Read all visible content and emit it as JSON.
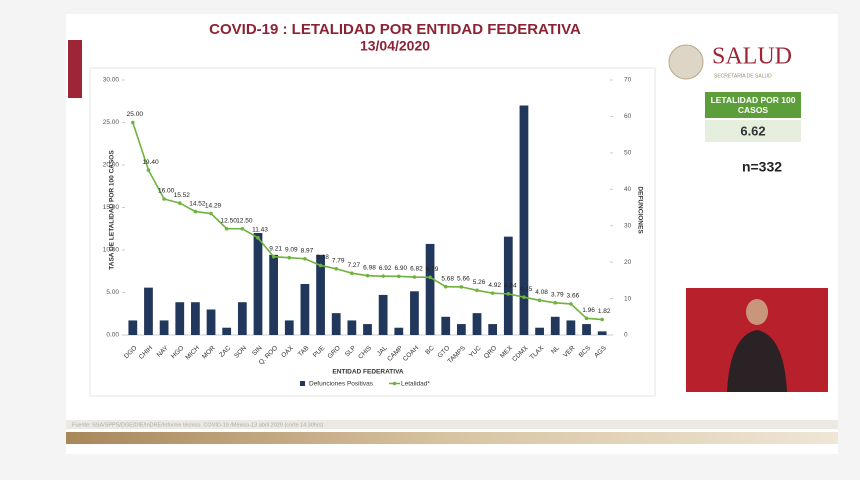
{
  "chart_data": {
    "type": "bar",
    "title": "COVID-19 : LETALIDAD POR ENTIDAD FEDERATIVA",
    "subtitle": "13/04/2020",
    "x_label": "ENTIDAD FEDERATIVA",
    "y_label": "TASA DE LETALIDAD POR 100 CASOS",
    "y2_label": "DEFUNCIONES",
    "categories": [
      "DGO",
      "CHIH",
      "NAY",
      "HGO",
      "MICH",
      "MOR",
      "ZAC",
      "SON",
      "SIN",
      "Q. ROO",
      "OAX",
      "TAB",
      "PUE",
      "GRO",
      "SLP",
      "CHIS",
      "JAL",
      "CAMP",
      "COAH",
      "BC",
      "GTO",
      "TAMPS",
      "YUC",
      "QRO",
      "MEX",
      "CDMX",
      "TLAX",
      "NL",
      "VER",
      "BCS",
      "AGS"
    ],
    "series": [
      {
        "name": "Defunciones Positivas",
        "type": "bar",
        "axis": "y2",
        "color": "#22375c",
        "values": [
          4,
          13,
          4,
          9,
          9,
          7,
          2,
          9,
          28,
          22,
          4,
          14,
          22,
          6,
          4,
          3,
          11,
          2,
          12,
          25,
          5,
          3,
          6,
          3,
          27,
          63,
          2,
          5,
          4,
          3,
          1
        ]
      },
      {
        "name": "Letalidad*",
        "type": "line",
        "axis": "y",
        "color": "#6fb33c",
        "values": [
          25,
          19.4,
          16,
          15.52,
          14.52,
          14.29,
          12.5,
          12.5,
          11.43,
          9.21,
          9.09,
          8.97,
          8.18,
          7.79,
          7.27,
          6.98,
          6.92,
          6.9,
          6.82,
          6.79,
          5.68,
          5.66,
          5.26,
          4.92,
          4.84,
          4.45,
          4.08,
          3.79,
          3.66,
          1.96,
          1.82
        ],
        "value_labels": [
          "25.00",
          "19.40",
          "16.00",
          "15.52",
          "14.52",
          "14.29",
          "12.50",
          "12.50",
          "11.43",
          "9.21",
          "9.09",
          "8.97",
          "8.18",
          "7.79",
          "7.27",
          "6.98",
          "6.92",
          "6.90",
          "6.82",
          "6.79",
          "5.68",
          "5.66",
          "5.26",
          "4.92",
          "4.84",
          "4.45",
          "4.08",
          "3.79",
          "3.66",
          "1.96",
          "1.82"
        ]
      }
    ],
    "ylim": [
      0,
      30
    ],
    "yticks": [
      {
        "value": 0,
        "label": "0.00"
      },
      {
        "value": 5,
        "label": "5.00"
      },
      {
        "value": 10,
        "label": "10.00"
      },
      {
        "value": 15,
        "label": "15.00"
      },
      {
        "value": 20,
        "label": "20.00"
      },
      {
        "value": 25,
        "label": "25.00"
      },
      {
        "value": 30,
        "label": "30.00"
      }
    ],
    "y2lim": [
      0,
      70
    ],
    "y2ticks": [
      0,
      10,
      20,
      30,
      40,
      50,
      60,
      70
    ],
    "source": "Fuente: SSA/SPPS/DGE/DIE/InDRE/Informe técnico. COVID-19 /México-13 abril 2020 (corte 14:30hrs)"
  },
  "header": {
    "logo": "SALUD",
    "logo_subtitle": "SECRETARÍA DE SALUD"
  },
  "panel": {
    "label": "LETALIDAD POR 100 CASOS",
    "value": "6.62",
    "n": "n=332"
  }
}
